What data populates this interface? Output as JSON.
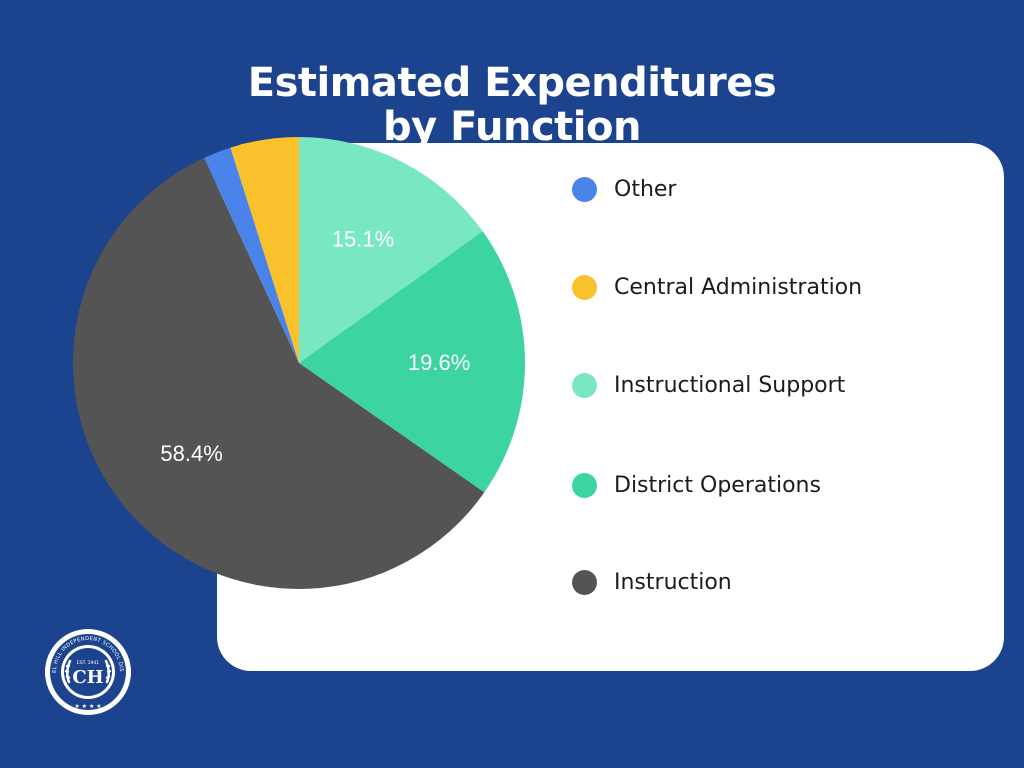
{
  "colors": {
    "background": "#1c448e",
    "card": "#ffffff"
  },
  "chart_data": {
    "type": "pie",
    "title": [
      "Estimated Expenditures",
      "by Function"
    ],
    "legend_position": "right",
    "start": "top, clockwise",
    "slices": [
      {
        "name": "Instructional Support",
        "value": 15.1,
        "label": "15.1%",
        "color": "#79e6c4"
      },
      {
        "name": "District Operations",
        "value": 19.6,
        "label": "19.6%",
        "color": "#3cd59f"
      },
      {
        "name": "Instruction",
        "value": 58.4,
        "label": "58.4%",
        "color": "#545454"
      },
      {
        "name": "Other",
        "value": 2.0,
        "label": "",
        "color": "#4a84e8"
      },
      {
        "name": "Central Administration",
        "value": 4.9,
        "label": "",
        "color": "#f9c12b"
      }
    ],
    "legend": [
      {
        "name": "Other",
        "color": "#4a84e8"
      },
      {
        "name": "Central Administration",
        "color": "#f9c12b"
      },
      {
        "name": "Instructional Support",
        "color": "#79e6c4"
      },
      {
        "name": "District Operations",
        "color": "#3cd59f"
      },
      {
        "name": "Instruction",
        "color": "#545454"
      }
    ]
  },
  "seal": {
    "name": "CHAPEL HILL INDEPENDENT SCHOOL DISTRICT",
    "established": "EST. 1941"
  }
}
